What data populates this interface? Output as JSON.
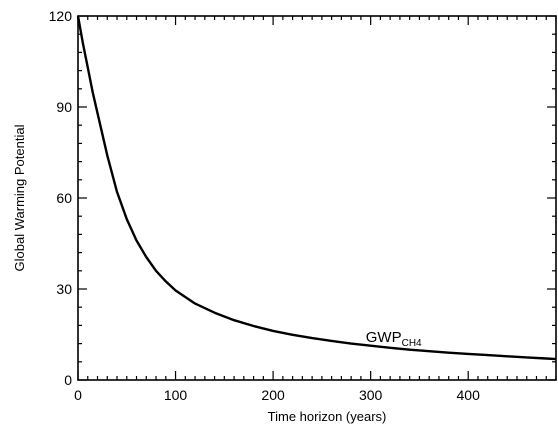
{
  "chart_data": {
    "type": "line",
    "xlabel": "Time horizon (years)",
    "ylabel": "Global Warming Potential",
    "xlim": [
      0,
      490
    ],
    "ylim": [
      0,
      120
    ],
    "xticks": [
      0,
      100,
      200,
      300,
      400
    ],
    "yticks": [
      0,
      30,
      60,
      90,
      120
    ],
    "grid": false,
    "series": [
      {
        "color": "#000000",
        "x": [
          0,
          5,
          10,
          15,
          20,
          25,
          30,
          40,
          50,
          60,
          70,
          80,
          90,
          100,
          120,
          140,
          160,
          180,
          200,
          220,
          240,
          260,
          280,
          300,
          320,
          340,
          360,
          380,
          400,
          420,
          440,
          460,
          480,
          490
        ],
        "y": [
          120,
          111,
          103,
          95,
          88,
          81,
          74,
          62,
          53,
          46,
          40.5,
          36,
          32.5,
          29.5,
          25.2,
          22.2,
          19.7,
          17.8,
          16.2,
          14.9,
          13.8,
          12.9,
          12.0,
          11.3,
          10.6,
          10.0,
          9.5,
          9.0,
          8.6,
          8.2,
          7.8,
          7.45,
          7.1,
          6.9
        ]
      }
    ],
    "annotations": [
      {
        "text": "GWP",
        "subscript": "CH4",
        "x": 295,
        "y": 12.5
      }
    ]
  }
}
